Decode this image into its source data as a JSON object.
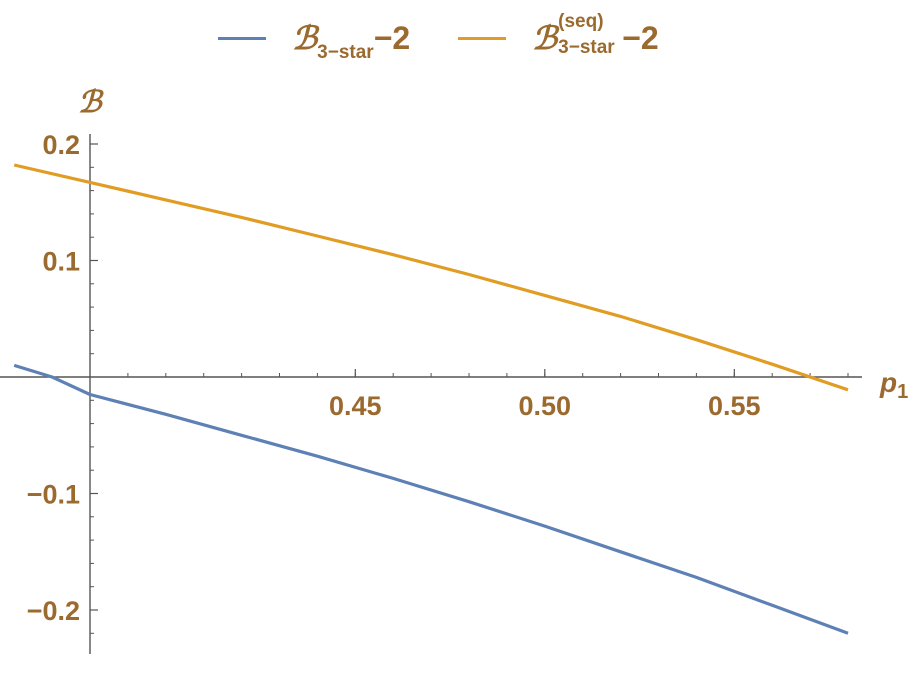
{
  "chart_data": {
    "type": "line",
    "xlabel": {
      "main": "p",
      "sub": "1"
    },
    "ylabel": "ℬ",
    "xlim": [
      0.38,
      0.58
    ],
    "ylim": [
      -0.235,
      0.2
    ],
    "x_ticks": [
      0.45,
      0.5,
      0.55
    ],
    "x_tick_labels": [
      "0.45",
      "0.50",
      "0.55"
    ],
    "y_ticks": [
      -0.2,
      -0.1,
      0.1,
      0.2
    ],
    "y_tick_labels": [
      "−0.2",
      "−0.1",
      "0.1",
      "0.2"
    ],
    "grid": false,
    "legend_position": "top-center",
    "legend": [
      {
        "main": "ℬ",
        "sub": "3−star",
        "tail": "−2"
      },
      {
        "main": "ℬ",
        "sup": "(seq)",
        "sub": "3−star",
        "tail": "−2"
      }
    ],
    "series": [
      {
        "color": "#5e81b5",
        "x": [
          0.36,
          0.37,
          0.38,
          0.4,
          0.42,
          0.44,
          0.46,
          0.48,
          0.5,
          0.52,
          0.54,
          0.56,
          0.58
        ],
        "y": [
          0.01,
          0.0,
          -0.015,
          -0.032,
          -0.05,
          -0.068,
          -0.087,
          -0.107,
          -0.128,
          -0.15,
          -0.172,
          -0.196,
          -0.22
        ]
      },
      {
        "color": "#e19c24",
        "x": [
          0.36,
          0.38,
          0.4,
          0.42,
          0.44,
          0.46,
          0.48,
          0.5,
          0.52,
          0.54,
          0.56,
          0.58
        ],
        "y": [
          0.182,
          0.167,
          0.152,
          0.137,
          0.121,
          0.105,
          0.088,
          0.07,
          0.052,
          0.032,
          0.011,
          -0.011
        ]
      }
    ]
  },
  "colors": {
    "axis": "#555555",
    "label": "#9b6a2e"
  }
}
